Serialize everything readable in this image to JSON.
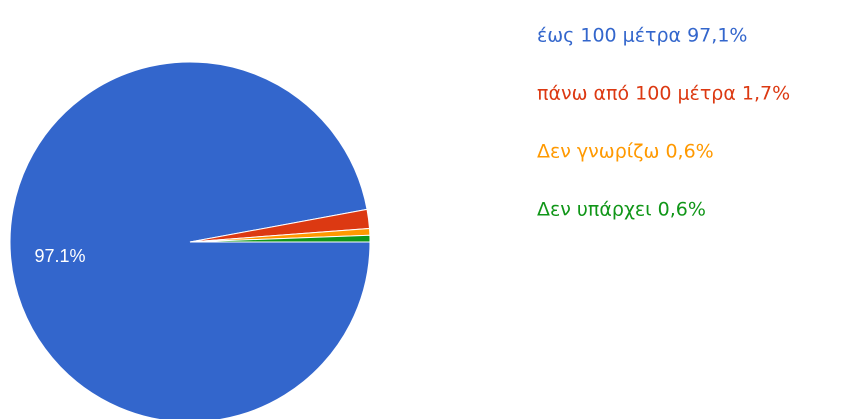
{
  "chart_data": {
    "type": "pie",
    "categories": [
      "έως 100 μέτρα 97,1%",
      "πάνω από 100 μέτρα 1,7%",
      "Δεν γνωρίζω 0,6%",
      "Δεν υπάρχει 0,6%"
    ],
    "values": [
      97.1,
      1.7,
      0.6,
      0.6
    ],
    "value_labels": [
      "97.1%",
      null,
      null,
      null
    ],
    "colors": [
      "#3366cc",
      "#dc3912",
      "#ff9900",
      "#109618"
    ]
  }
}
